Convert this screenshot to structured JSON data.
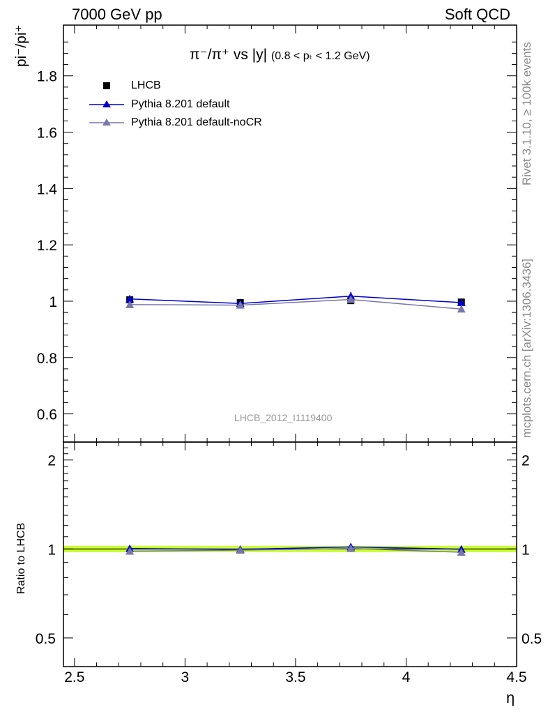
{
  "header": {
    "left": "7000 GeV pp",
    "right": "Soft QCD"
  },
  "side_texts": {
    "rivet": "Rivet 3.1.10, ≥ 100k events",
    "mcplots": "mcplots.cern.ch [arXiv:1306.3436]"
  },
  "title_main": "π⁻/π⁺ vs |y|",
  "title_range": "(0.8 < pₜ < 1.2 GeV)",
  "ylabel_main": "pi⁻/pi⁺",
  "ylabel_ratio": "Ratio to LHCB",
  "xlabel": "η",
  "watermark": "LHCB_2012_I1119400",
  "legend": [
    {
      "label": "LHCB",
      "color": "#000000",
      "marker": "square"
    },
    {
      "label": "Pythia 8.201 default",
      "color": "#0000cc",
      "marker": "triangle"
    },
    {
      "label": "Pythia 8.201 default-noCR",
      "color": "#7777aa",
      "marker": "triangle"
    }
  ],
  "chart_data": {
    "type": "line",
    "xlim": [
      2.45,
      4.5
    ],
    "ylim": [
      0.5,
      1.98
    ],
    "ratio_ylim": [
      0.4,
      2.3
    ],
    "x_ticks": [
      2.5,
      3,
      3.5,
      4,
      4.5
    ],
    "x_tick_labels": [
      "2.5",
      "3",
      "3.5",
      "4",
      "4.5"
    ],
    "y_ticks": [
      0.6,
      0.8,
      1.0,
      1.2,
      1.4,
      1.6,
      1.8
    ],
    "y_tick_labels": [
      "0.6",
      "0.8",
      "1",
      "1.2",
      "1.4",
      "1.6",
      "1.8"
    ],
    "ratio_ticks": [
      0.5,
      1,
      2
    ],
    "ratio_tick_labels": [
      "0.5",
      "1",
      "2"
    ],
    "x": [
      2.75,
      3.25,
      3.75,
      4.25
    ],
    "series": [
      {
        "name": "LHCB",
        "values": [
          1.005,
          0.995,
          1.002,
          0.997
        ],
        "errors": [
          0.015,
          0.008,
          0.01,
          0.01
        ],
        "color": "#000000"
      },
      {
        "name": "Pythia 8.201 default",
        "values": [
          1.008,
          0.992,
          1.018,
          0.995
        ],
        "errors": [
          0.012,
          0.005,
          0.015,
          0.006
        ],
        "color": "#0000cc"
      },
      {
        "name": "Pythia 8.201 default-noCR",
        "values": [
          0.988,
          0.986,
          1.006,
          0.972
        ],
        "errors": [
          0.006,
          0.005,
          0.008,
          0.006
        ],
        "color": "#7777aa"
      }
    ],
    "ratio_series": [
      {
        "name": "Pythia 8.201 default",
        "values": [
          1.003,
          0.997,
          1.016,
          0.998
        ],
        "color": "#0000cc"
      },
      {
        "name": "Pythia 8.201 default-noCR",
        "values": [
          0.983,
          0.991,
          1.004,
          0.975
        ],
        "color": "#7777aa"
      }
    ],
    "ratio_band": {
      "low": 0.975,
      "high": 1.025,
      "color": "#ccff33"
    }
  }
}
